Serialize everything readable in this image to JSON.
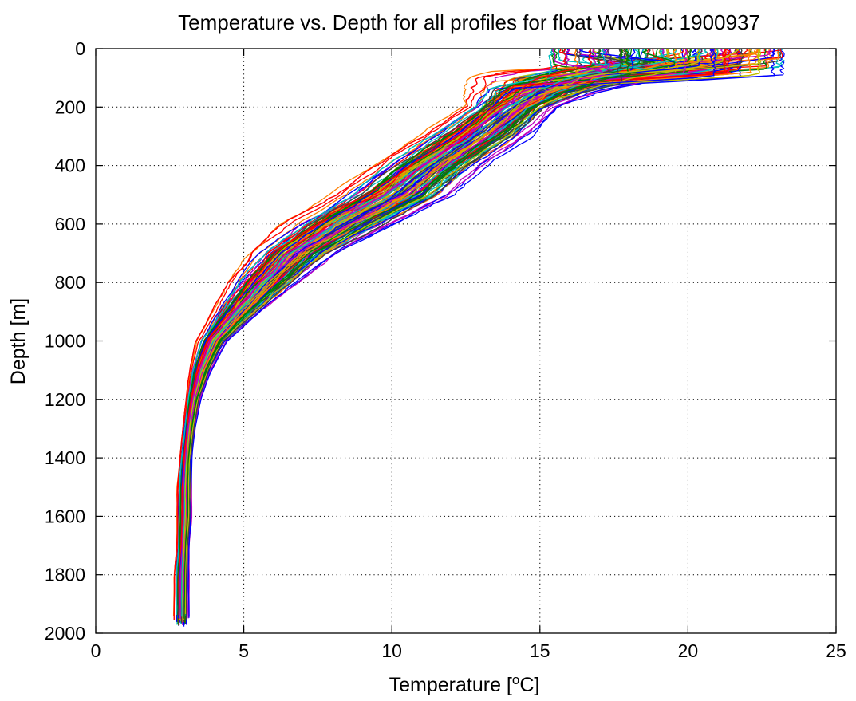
{
  "chart_data": {
    "type": "line",
    "title": "Temperature vs. Depth for all profiles for float WMOId: 1900937",
    "xlabel": {
      "prefix": "Temperature [",
      "sup": "o",
      "suffix": "C]"
    },
    "ylabel": "Depth [m]",
    "xlim": [
      0,
      25
    ],
    "ylim": [
      0,
      2000
    ],
    "y_reversed": true,
    "grid": true,
    "grid_style": "dotted",
    "x_ticks": [
      0,
      5,
      10,
      15,
      20,
      25
    ],
    "y_ticks": [
      0,
      200,
      400,
      600,
      800,
      1000,
      1200,
      1400,
      1600,
      1800,
      2000
    ],
    "x_tick_labels": [
      "0",
      "5",
      "10",
      "15",
      "20",
      "25"
    ],
    "y_tick_labels": [
      "0",
      "200",
      "400",
      "600",
      "800",
      "1000",
      "1200",
      "1400",
      "1600",
      "1800",
      "2000"
    ],
    "series_colors": [
      "#0000ff",
      "#008000",
      "#ff0000",
      "#00bfbf",
      "#bf00bf",
      "#bfbf00",
      "#404040",
      "#ff7f00"
    ],
    "profile_count": 190,
    "envelope": {
      "depth": [
        0,
        50,
        100,
        150,
        200,
        300,
        400,
        500,
        600,
        700,
        800,
        900,
        1000,
        1100,
        1200,
        1300,
        1400,
        1500,
        1600,
        1700,
        1800,
        1900,
        1975
      ],
      "temperature_min": [
        14.0,
        13.8,
        12.0,
        12.0,
        12.0,
        10.5,
        9.0,
        7.6,
        6.0,
        4.9,
        4.2,
        3.8,
        3.3,
        3.1,
        3.0,
        2.9,
        2.8,
        2.7,
        2.7,
        2.7,
        2.6,
        2.6,
        2.6
      ],
      "temperature_max": [
        23.2,
        23.0,
        20.0,
        17.5,
        16.0,
        15.0,
        13.5,
        12.5,
        10.5,
        8.5,
        7.2,
        5.8,
        4.6,
        4.0,
        3.6,
        3.4,
        3.3,
        3.3,
        3.3,
        3.2,
        3.2,
        3.2,
        3.2
      ]
    },
    "series": [
      {
        "depth": [
          0,
          25,
          50,
          75,
          100,
          150,
          200,
          300,
          400,
          500,
          600,
          700,
          800,
          900,
          1000,
          1100,
          1200,
          1300,
          1400,
          1500,
          1600,
          1700,
          1800,
          1900,
          1975
        ],
        "temperature": [
          18.5,
          18.4,
          18.0,
          16.5,
          15.0,
          13.6,
          12.9,
          11.4,
          10.0,
          8.5,
          7.2,
          5.9,
          4.9,
          4.2,
          3.7,
          3.4,
          3.2,
          3.1,
          3.0,
          2.95,
          2.9,
          2.85,
          2.85,
          2.8,
          2.8
        ]
      }
    ]
  }
}
